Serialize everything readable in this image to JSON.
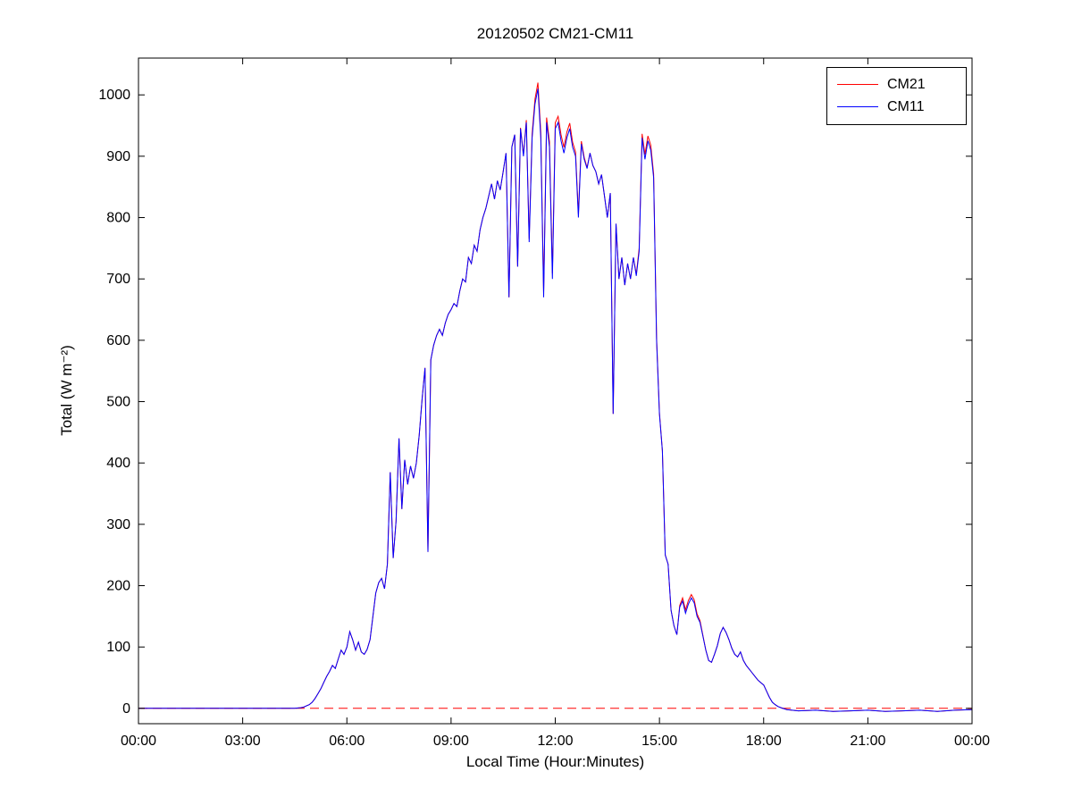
{
  "chart_data": {
    "type": "line",
    "title": "20120502 CM21-CM11",
    "xlabel": "Local Time (Hour:Minutes)",
    "ylabel": "Total (W m⁻²)",
    "grid": false,
    "xlim_minutes": [
      0,
      1440
    ],
    "ylim": [
      -25,
      1060
    ],
    "xticks": {
      "minutes": [
        0,
        180,
        360,
        540,
        720,
        900,
        1080,
        1260,
        1440
      ],
      "labels": [
        "00:00",
        "03:00",
        "06:00",
        "09:00",
        "12:00",
        "15:00",
        "18:00",
        "21:00",
        "00:00"
      ]
    },
    "yticks": [
      0,
      100,
      200,
      300,
      400,
      500,
      600,
      700,
      800,
      900,
      1000
    ],
    "legend": {
      "position": "top-right",
      "entries": [
        {
          "label": "CM21",
          "color": "#ff0000"
        },
        {
          "label": "CM11",
          "color": "#0000ff"
        }
      ]
    },
    "zero_line": {
      "y": 0,
      "color": "#ff0000",
      "style": "dashed"
    },
    "series": [
      {
        "name": "CM21",
        "color": "#ff0000",
        "derived_from": "CM11",
        "offset_anchors": [
          [
            0,
            0
          ],
          [
            655,
            0
          ],
          [
            670,
            4
          ],
          [
            685,
            8
          ],
          [
            690,
            10
          ],
          [
            705,
            8
          ],
          [
            725,
            10
          ],
          [
            745,
            9
          ],
          [
            760,
            6
          ],
          [
            770,
            3
          ],
          [
            780,
            0
          ],
          [
            855,
            0
          ],
          [
            865,
            5
          ],
          [
            875,
            8
          ],
          [
            885,
            8
          ],
          [
            895,
            4
          ],
          [
            905,
            0
          ],
          [
            930,
            0
          ],
          [
            940,
            5
          ],
          [
            950,
            6
          ],
          [
            960,
            5
          ],
          [
            970,
            3
          ],
          [
            980,
            0
          ],
          [
            1440,
            0
          ]
        ]
      },
      {
        "name": "CM11",
        "color": "#0000ff",
        "points_minutes_wm2": [
          [
            0,
            0
          ],
          [
            30,
            0
          ],
          [
            60,
            0
          ],
          [
            90,
            0
          ],
          [
            120,
            0
          ],
          [
            150,
            0
          ],
          [
            180,
            0
          ],
          [
            210,
            0
          ],
          [
            240,
            0
          ],
          [
            270,
            0
          ],
          [
            280,
            1
          ],
          [
            285,
            2
          ],
          [
            290,
            4
          ],
          [
            295,
            6
          ],
          [
            300,
            10
          ],
          [
            305,
            16
          ],
          [
            310,
            24
          ],
          [
            315,
            32
          ],
          [
            320,
            42
          ],
          [
            325,
            52
          ],
          [
            330,
            60
          ],
          [
            335,
            70
          ],
          [
            340,
            65
          ],
          [
            345,
            80
          ],
          [
            350,
            95
          ],
          [
            355,
            88
          ],
          [
            360,
            100
          ],
          [
            365,
            125
          ],
          [
            370,
            112
          ],
          [
            375,
            95
          ],
          [
            380,
            108
          ],
          [
            385,
            92
          ],
          [
            390,
            88
          ],
          [
            395,
            96
          ],
          [
            400,
            112
          ],
          [
            405,
            150
          ],
          [
            410,
            188
          ],
          [
            415,
            205
          ],
          [
            420,
            212
          ],
          [
            425,
            195
          ],
          [
            430,
            235
          ],
          [
            435,
            385
          ],
          [
            440,
            245
          ],
          [
            445,
            305
          ],
          [
            450,
            440
          ],
          [
            455,
            325
          ],
          [
            460,
            405
          ],
          [
            465,
            365
          ],
          [
            470,
            395
          ],
          [
            475,
            375
          ],
          [
            480,
            400
          ],
          [
            485,
            445
          ],
          [
            490,
            505
          ],
          [
            495,
            555
          ],
          [
            500,
            255
          ],
          [
            505,
            568
          ],
          [
            510,
            592
          ],
          [
            515,
            608
          ],
          [
            520,
            618
          ],
          [
            525,
            608
          ],
          [
            530,
            628
          ],
          [
            535,
            642
          ],
          [
            540,
            650
          ],
          [
            545,
            660
          ],
          [
            550,
            655
          ],
          [
            555,
            680
          ],
          [
            560,
            700
          ],
          [
            565,
            695
          ],
          [
            570,
            735
          ],
          [
            575,
            725
          ],
          [
            580,
            755
          ],
          [
            585,
            745
          ],
          [
            590,
            780
          ],
          [
            595,
            800
          ],
          [
            600,
            815
          ],
          [
            605,
            835
          ],
          [
            610,
            855
          ],
          [
            615,
            830
          ],
          [
            620,
            860
          ],
          [
            625,
            845
          ],
          [
            630,
            875
          ],
          [
            635,
            905
          ],
          [
            640,
            670
          ],
          [
            645,
            915
          ],
          [
            650,
            935
          ],
          [
            655,
            720
          ],
          [
            660,
            945
          ],
          [
            665,
            900
          ],
          [
            670,
            955
          ],
          [
            675,
            760
          ],
          [
            680,
            930
          ],
          [
            685,
            985
          ],
          [
            690,
            1010
          ],
          [
            695,
            930
          ],
          [
            700,
            670
          ],
          [
            705,
            955
          ],
          [
            710,
            915
          ],
          [
            715,
            700
          ],
          [
            720,
            945
          ],
          [
            725,
            955
          ],
          [
            730,
            925
          ],
          [
            735,
            905
          ],
          [
            740,
            930
          ],
          [
            745,
            945
          ],
          [
            750,
            915
          ],
          [
            755,
            900
          ],
          [
            760,
            800
          ],
          [
            765,
            920
          ],
          [
            770,
            895
          ],
          [
            775,
            880
          ],
          [
            780,
            905
          ],
          [
            785,
            885
          ],
          [
            790,
            875
          ],
          [
            795,
            855
          ],
          [
            800,
            870
          ],
          [
            805,
            835
          ],
          [
            810,
            800
          ],
          [
            815,
            840
          ],
          [
            820,
            480
          ],
          [
            825,
            790
          ],
          [
            830,
            700
          ],
          [
            835,
            735
          ],
          [
            840,
            690
          ],
          [
            845,
            725
          ],
          [
            850,
            700
          ],
          [
            855,
            735
          ],
          [
            860,
            705
          ],
          [
            865,
            745
          ],
          [
            870,
            930
          ],
          [
            875,
            895
          ],
          [
            880,
            925
          ],
          [
            885,
            910
          ],
          [
            890,
            865
          ],
          [
            895,
            600
          ],
          [
            900,
            480
          ],
          [
            905,
            420
          ],
          [
            910,
            250
          ],
          [
            915,
            235
          ],
          [
            920,
            160
          ],
          [
            925,
            135
          ],
          [
            930,
            120
          ],
          [
            935,
            165
          ],
          [
            940,
            175
          ],
          [
            945,
            155
          ],
          [
            950,
            170
          ],
          [
            955,
            180
          ],
          [
            960,
            172
          ],
          [
            965,
            150
          ],
          [
            970,
            140
          ],
          [
            975,
            118
          ],
          [
            980,
            95
          ],
          [
            985,
            78
          ],
          [
            990,
            75
          ],
          [
            995,
            88
          ],
          [
            1000,
            102
          ],
          [
            1005,
            122
          ],
          [
            1010,
            132
          ],
          [
            1015,
            124
          ],
          [
            1020,
            112
          ],
          [
            1025,
            98
          ],
          [
            1030,
            88
          ],
          [
            1035,
            84
          ],
          [
            1040,
            92
          ],
          [
            1045,
            78
          ],
          [
            1050,
            70
          ],
          [
            1055,
            64
          ],
          [
            1060,
            58
          ],
          [
            1065,
            52
          ],
          [
            1070,
            46
          ],
          [
            1075,
            42
          ],
          [
            1080,
            38
          ],
          [
            1085,
            28
          ],
          [
            1090,
            18
          ],
          [
            1095,
            10
          ],
          [
            1100,
            6
          ],
          [
            1105,
            3
          ],
          [
            1110,
            1
          ],
          [
            1120,
            -2
          ],
          [
            1140,
            -4
          ],
          [
            1170,
            -3
          ],
          [
            1200,
            -5
          ],
          [
            1230,
            -4
          ],
          [
            1260,
            -3
          ],
          [
            1290,
            -5
          ],
          [
            1320,
            -4
          ],
          [
            1350,
            -3
          ],
          [
            1380,
            -5
          ],
          [
            1410,
            -3
          ],
          [
            1440,
            -2
          ]
        ]
      }
    ]
  }
}
